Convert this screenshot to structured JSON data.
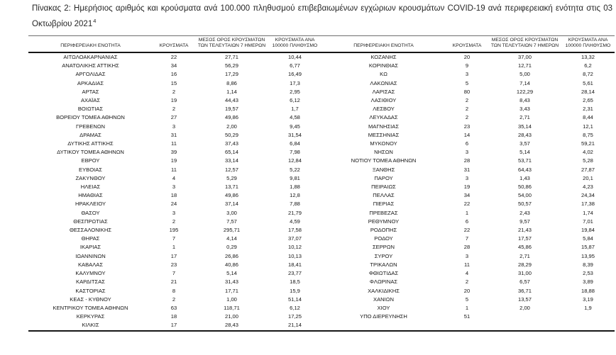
{
  "title": {
    "text": "Πίνακας 2: Ημερήσιος αριθμός και κρούσματα ανά 100.000 πληθυσμού επιβεβαιωμένων εγχώριων κρουσμάτων COVID-19 ανά περιφερειακή ενότητα στις 03 Οκτωβρίου 2021",
    "footnote_ref": "4"
  },
  "table": {
    "column_headers": [
      "ΠΕΡΙΦΕΡΕΙΑΚΗ ΕΝΟΤΗΤΑ",
      "ΚΡΟΥΣΜΑΤΑ",
      "ΜΕΣΟΣ ΟΡΟΣ ΚΡΟΥΣΜΑΤΩΝ ΤΩΝ ΤΕΛΕΥΤΑΙΩΝ 7 ΗΜΕΡΩΝ",
      "ΚΡΟΥΣΜΑΤΑ ΑΝΑ 100000 ΠΛΗΘΥΣΜΟ"
    ],
    "left_rows": [
      {
        "region": "ΑΙΤΩΛΟΑΚΑΡΝΑΝΙΑΣ",
        "cases": "22",
        "avg7": "27,71",
        "per100k": "10,44"
      },
      {
        "region": "ΑΝΑΤΟΛΙΚΗΣ ΑΤΤΙΚΗΣ",
        "cases": "34",
        "avg7": "56,29",
        "per100k": "6,77"
      },
      {
        "region": "ΑΡΓΟΛΙΔΑΣ",
        "cases": "16",
        "avg7": "17,29",
        "per100k": "16,49"
      },
      {
        "region": "ΑΡΚΑΔΙΑΣ",
        "cases": "15",
        "avg7": "8,86",
        "per100k": "17,3"
      },
      {
        "region": "ΑΡΤΑΣ",
        "cases": "2",
        "avg7": "1,14",
        "per100k": "2,95"
      },
      {
        "region": "ΑΧΑΪΑΣ",
        "cases": "19",
        "avg7": "44,43",
        "per100k": "6,12"
      },
      {
        "region": "ΒΟΙΩΤΙΑΣ",
        "cases": "2",
        "avg7": "19,57",
        "per100k": "1,7"
      },
      {
        "region": "ΒΟΡΕΙΟΥ ΤΟΜΕΑ ΑΘΗΝΩΝ",
        "cases": "27",
        "avg7": "49,86",
        "per100k": "4,58"
      },
      {
        "region": "ΓΡΕΒΕΝΩΝ",
        "cases": "3",
        "avg7": "2,00",
        "per100k": "9,45"
      },
      {
        "region": "ΔΡΑΜΑΣ",
        "cases": "31",
        "avg7": "50,29",
        "per100k": "31,54"
      },
      {
        "region": "ΔΥΤΙΚΗΣ ΑΤΤΙΚΗΣ",
        "cases": "11",
        "avg7": "37,43",
        "per100k": "6,84"
      },
      {
        "region": "ΔΥΤΙΚΟΥ ΤΟΜΕΑ ΑΘΗΝΩΝ",
        "cases": "39",
        "avg7": "65,14",
        "per100k": "7,98"
      },
      {
        "region": "ΕΒΡΟΥ",
        "cases": "19",
        "avg7": "33,14",
        "per100k": "12,84"
      },
      {
        "region": "ΕΥΒΟΙΑΣ",
        "cases": "11",
        "avg7": "12,57",
        "per100k": "5,22"
      },
      {
        "region": "ΖΑΚΥΝΘΟΥ",
        "cases": "4",
        "avg7": "5,29",
        "per100k": "9,81"
      },
      {
        "region": "ΗΛΕΙΑΣ",
        "cases": "3",
        "avg7": "13,71",
        "per100k": "1,88"
      },
      {
        "region": "ΗΜΑΘΙΑΣ",
        "cases": "18",
        "avg7": "49,86",
        "per100k": "12,8"
      },
      {
        "region": "ΗΡΑΚΛΕΙΟΥ",
        "cases": "24",
        "avg7": "37,14",
        "per100k": "7,88"
      },
      {
        "region": "ΘΑΣΟΥ",
        "cases": "3",
        "avg7": "3,00",
        "per100k": "21,79"
      },
      {
        "region": "ΘΕΣΠΡΩΤΙΑΣ",
        "cases": "2",
        "avg7": "7,57",
        "per100k": "4,59"
      },
      {
        "region": "ΘΕΣΣΑΛΟΝΙΚΗΣ",
        "cases": "195",
        "avg7": "295,71",
        "per100k": "17,58"
      },
      {
        "region": "ΘΗΡΑΣ",
        "cases": "7",
        "avg7": "4,14",
        "per100k": "37,07"
      },
      {
        "region": "ΙΚΑΡΙΑΣ",
        "cases": "1",
        "avg7": "0,29",
        "per100k": "10,12"
      },
      {
        "region": "ΙΩΑΝΝΙΝΩΝ",
        "cases": "17",
        "avg7": "26,86",
        "per100k": "10,13"
      },
      {
        "region": "ΚΑΒΑΛΑΣ",
        "cases": "23",
        "avg7": "40,86",
        "per100k": "18,41"
      },
      {
        "region": "ΚΑΛΥΜΝΟΥ",
        "cases": "7",
        "avg7": "5,14",
        "per100k": "23,77"
      },
      {
        "region": "ΚΑΡΔΙΤΣΑΣ",
        "cases": "21",
        "avg7": "31,43",
        "per100k": "18,5"
      },
      {
        "region": "ΚΑΣΤΟΡΙΑΣ",
        "cases": "8",
        "avg7": "17,71",
        "per100k": "15,9"
      },
      {
        "region": "ΚΕΑΣ - ΚΥΘΝΟΥ",
        "cases": "2",
        "avg7": "1,00",
        "per100k": "51,14"
      },
      {
        "region": "ΚΕΝΤΡΙΚΟΥ ΤΟΜΕΑ ΑΘΗΝΩΝ",
        "cases": "63",
        "avg7": "118,71",
        "per100k": "6,12"
      },
      {
        "region": "ΚΕΡΚΥΡΑΣ",
        "cases": "18",
        "avg7": "21,00",
        "per100k": "17,25"
      },
      {
        "region": "ΚΙΛΚΙΣ",
        "cases": "17",
        "avg7": "28,43",
        "per100k": "21,14"
      }
    ],
    "right_rows": [
      {
        "region": "ΚΟΖΑΝΗΣ",
        "cases": "20",
        "avg7": "37,00",
        "per100k": "13,32"
      },
      {
        "region": "ΚΟΡΙΝΘΙΑΣ",
        "cases": "9",
        "avg7": "12,71",
        "per100k": "6,2"
      },
      {
        "region": "ΚΩ",
        "cases": "3",
        "avg7": "5,00",
        "per100k": "8,72"
      },
      {
        "region": "ΛΑΚΩΝΙΑΣ",
        "cases": "5",
        "avg7": "7,14",
        "per100k": "5,61"
      },
      {
        "region": "ΛΑΡΙΣΑΣ",
        "cases": "80",
        "avg7": "122,29",
        "per100k": "28,14"
      },
      {
        "region": "ΛΑΣΙΘΙΟΥ",
        "cases": "2",
        "avg7": "8,43",
        "per100k": "2,65"
      },
      {
        "region": "ΛΕΣΒΟΥ",
        "cases": "2",
        "avg7": "3,43",
        "per100k": "2,31"
      },
      {
        "region": "ΛΕΥΚΑΔΑΣ",
        "cases": "2",
        "avg7": "2,71",
        "per100k": "8,44"
      },
      {
        "region": "ΜΑΓΝΗΣΙΑΣ",
        "cases": "23",
        "avg7": "35,14",
        "per100k": "12,1"
      },
      {
        "region": "ΜΕΣΣΗΝΙΑΣ",
        "cases": "14",
        "avg7": "28,43",
        "per100k": "8,75"
      },
      {
        "region": "ΜΥΚΟΝΟΥ",
        "cases": "6",
        "avg7": "3,57",
        "per100k": "59,21"
      },
      {
        "region": "ΝΗΣΩΝ",
        "cases": "3",
        "avg7": "5,14",
        "per100k": "4,02"
      },
      {
        "region": "ΝΟΤΙΟΥ ΤΟΜΕΑ ΑΘΗΝΩΝ",
        "cases": "28",
        "avg7": "53,71",
        "per100k": "5,28"
      },
      {
        "region": "ΞΑΝΘΗΣ",
        "cases": "31",
        "avg7": "64,43",
        "per100k": "27,87"
      },
      {
        "region": "ΠΑΡΟΥ",
        "cases": "3",
        "avg7": "1,43",
        "per100k": "20,1"
      },
      {
        "region": "ΠΕΙΡΑΙΩΣ",
        "cases": "19",
        "avg7": "50,86",
        "per100k": "4,23"
      },
      {
        "region": "ΠΕΛΛΑΣ",
        "cases": "34",
        "avg7": "54,00",
        "per100k": "24,34"
      },
      {
        "region": "ΠΙΕΡΙΑΣ",
        "cases": "22",
        "avg7": "50,57",
        "per100k": "17,38"
      },
      {
        "region": "ΠΡΕΒΕΖΑΣ",
        "cases": "1",
        "avg7": "2,43",
        "per100k": "1,74"
      },
      {
        "region": "ΡΕΘΥΜΝΟΥ",
        "cases": "6",
        "avg7": "9,57",
        "per100k": "7,01"
      },
      {
        "region": "ΡΟΔΟΠΗΣ",
        "cases": "22",
        "avg7": "21,43",
        "per100k": "19,84"
      },
      {
        "region": "ΡΟΔΟΥ",
        "cases": "7",
        "avg7": "17,57",
        "per100k": "5,84"
      },
      {
        "region": "ΣΕΡΡΩΝ",
        "cases": "28",
        "avg7": "45,86",
        "per100k": "15,87"
      },
      {
        "region": "ΣΥΡΟΥ",
        "cases": "3",
        "avg7": "2,71",
        "per100k": "13,95"
      },
      {
        "region": "ΤΡΙΚΑΛΩΝ",
        "cases": "11",
        "avg7": "28,29",
        "per100k": "8,39"
      },
      {
        "region": "ΦΘΙΩΤΙΔΑΣ",
        "cases": "4",
        "avg7": "31,00",
        "per100k": "2,53"
      },
      {
        "region": "ΦΛΩΡΙΝΑΣ",
        "cases": "2",
        "avg7": "6,57",
        "per100k": "3,89"
      },
      {
        "region": "ΧΑΛΚΙΔΙΚΗΣ",
        "cases": "20",
        "avg7": "36,71",
        "per100k": "18,88"
      },
      {
        "region": "ΧΑΝΙΩΝ",
        "cases": "5",
        "avg7": "13,57",
        "per100k": "3,19"
      },
      {
        "region": "ΧΙΟΥ",
        "cases": "1",
        "avg7": "2,00",
        "per100k": "1,9"
      },
      {
        "region": "ΥΠΟ ΔΙΕΡΕΥΝΗΣΗ",
        "cases": "51",
        "avg7": "",
        "per100k": ""
      }
    ]
  }
}
